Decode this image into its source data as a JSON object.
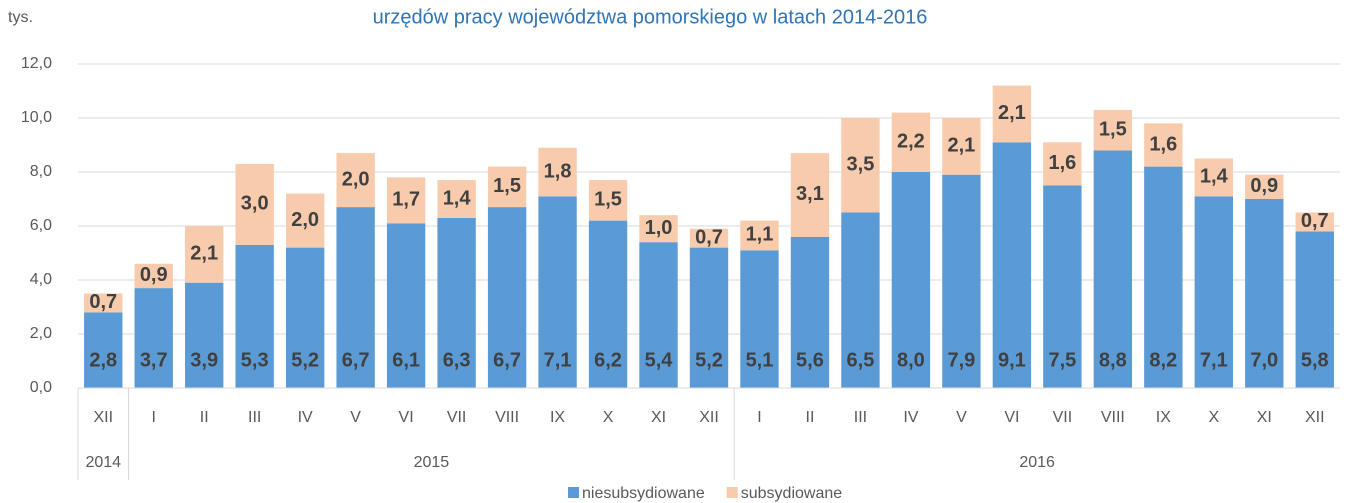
{
  "chart_data": {
    "type": "stacked_bar",
    "title": "urzędów pracy województwa pomorskiego w latach 2014-2016",
    "y_label": "tys.",
    "categories": [
      "XII",
      "I",
      "II",
      "III",
      "IV",
      "V",
      "VI",
      "VII",
      "VIII",
      "IX",
      "X",
      "XI",
      "XII",
      "I",
      "II",
      "III",
      "IV",
      "V",
      "VI",
      "VII",
      "VIII",
      "IX",
      "X",
      "XI",
      "XII"
    ],
    "groups": [
      {
        "name": "2014",
        "count": 1
      },
      {
        "name": "2015",
        "count": 12
      },
      {
        "name": "2016",
        "count": 12
      }
    ],
    "series": [
      {
        "name": "niesubsydiowane",
        "color": "#5b9bd5",
        "values": [
          2.8,
          3.7,
          3.9,
          5.3,
          5.2,
          6.7,
          6.1,
          6.3,
          6.7,
          7.1,
          6.2,
          5.4,
          5.2,
          5.1,
          5.6,
          6.5,
          8.0,
          7.9,
          9.1,
          7.5,
          8.8,
          8.2,
          7.1,
          7.0,
          5.8
        ],
        "value_labels": [
          "2,8",
          "3,7",
          "3,9",
          "5,3",
          "5,2",
          "6,7",
          "6,1",
          "6,3",
          "6,7",
          "7,1",
          "6,2",
          "5,4",
          "5,2",
          "5,1",
          "5,6",
          "6,5",
          "8,0",
          "7,9",
          "9,1",
          "7,5",
          "8,8",
          "8,2",
          "7,1",
          "7,0",
          "5,8"
        ]
      },
      {
        "name": "subsydiowane",
        "color": "#f8cbad",
        "values": [
          0.7,
          0.9,
          2.1,
          3.0,
          2.0,
          2.0,
          1.7,
          1.4,
          1.5,
          1.8,
          1.5,
          1.0,
          0.7,
          1.1,
          3.1,
          3.5,
          2.2,
          2.1,
          2.1,
          1.6,
          1.5,
          1.6,
          1.4,
          0.9,
          0.7
        ],
        "value_labels": [
          "0,7",
          "0,9",
          "2,1",
          "3,0",
          "2,0",
          "2,0",
          "1,7",
          "1,4",
          "1,5",
          "1,8",
          "1,5",
          "1,0",
          "0,7",
          "1,1",
          "3,1",
          "3,5",
          "2,2",
          "2,1",
          "2,1",
          "1,6",
          "1,5",
          "1,6",
          "1,4",
          "0,9",
          "0,7"
        ]
      }
    ],
    "ylim": [
      0,
      12
    ],
    "yticks": [
      {
        "value": 0,
        "label": "0,0"
      },
      {
        "value": 2,
        "label": "2,0"
      },
      {
        "value": 4,
        "label": "4,0"
      },
      {
        "value": 6,
        "label": "6,0"
      },
      {
        "value": 8,
        "label": "8,0"
      },
      {
        "value": 10,
        "label": "10,0"
      },
      {
        "value": 12,
        "label": "12,0"
      }
    ],
    "grid": true
  }
}
